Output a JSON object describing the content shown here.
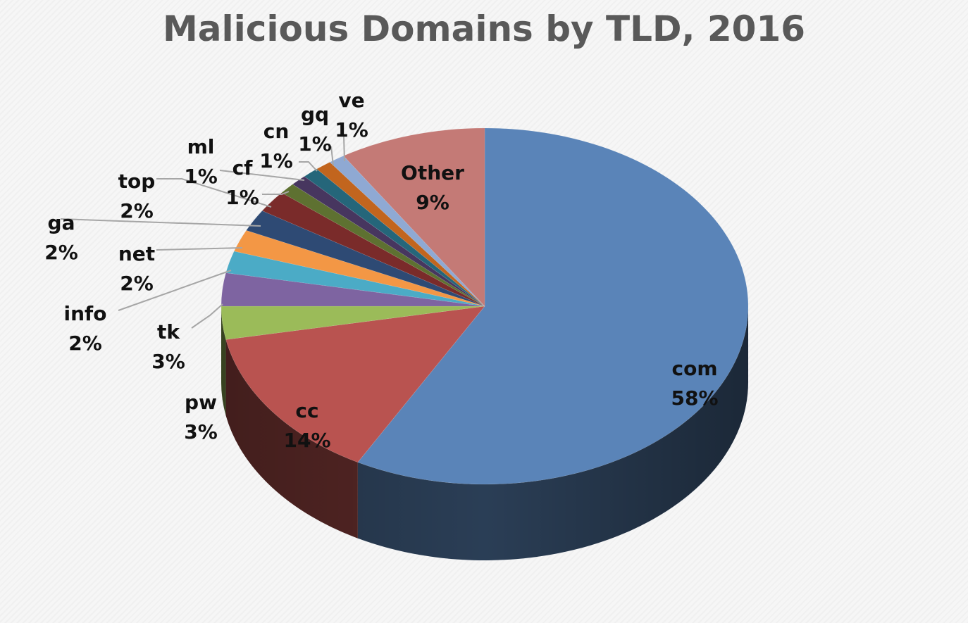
{
  "chart_data": {
    "type": "pie",
    "title": "Malicious Domains by TLD, 2016",
    "slices": [
      {
        "name": "com",
        "value": 58,
        "label": "58%",
        "color": "#5a84b8"
      },
      {
        "name": "cc",
        "value": 14,
        "label": "14%",
        "color": "#b95350"
      },
      {
        "name": "pw",
        "value": 3,
        "label": "3%",
        "color": "#9bbb59"
      },
      {
        "name": "tk",
        "value": 3,
        "label": "3%",
        "color": "#7e64a1"
      },
      {
        "name": "info",
        "value": 2,
        "label": "2%",
        "color": "#4babc6"
      },
      {
        "name": "net",
        "value": 2,
        "label": "2%",
        "color": "#f39745"
      },
      {
        "name": "ga",
        "value": 2,
        "label": "2%",
        "color": "#2e4a74"
      },
      {
        "name": "top",
        "value": 2,
        "label": "2%",
        "color": "#7a2b2a"
      },
      {
        "name": "cf",
        "value": 1,
        "label": "1%",
        "color": "#5e7131"
      },
      {
        "name": "ml",
        "value": 1,
        "label": "1%",
        "color": "#47365f"
      },
      {
        "name": "cn",
        "value": 1,
        "label": "1%",
        "color": "#25667a"
      },
      {
        "name": "gq",
        "value": 1,
        "label": "1%",
        "color": "#c2651e"
      },
      {
        "name": "ve",
        "value": 1,
        "label": "1%",
        "color": "#8fa9d3"
      },
      {
        "name": "Other",
        "value": 9,
        "label": "9%",
        "color": "#c47a76"
      }
    ]
  }
}
